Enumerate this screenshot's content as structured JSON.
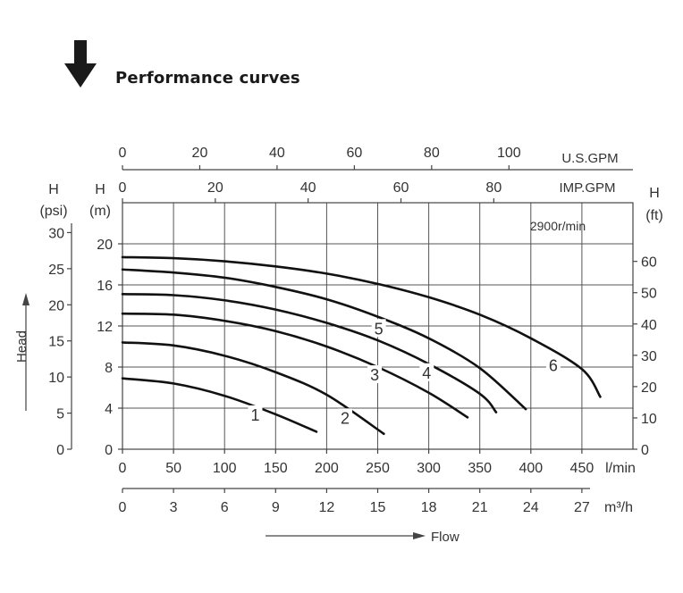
{
  "header": {
    "title": "Performance curves",
    "icon": "down-arrow-icon"
  },
  "chart_data": {
    "type": "line",
    "annotation": "2900r/min",
    "xlabel": "Flow",
    "ylabel": "Head",
    "axes": {
      "flow_lpm": {
        "label": "l/min",
        "ticks": [
          0,
          50,
          100,
          150,
          200,
          250,
          300,
          350,
          400,
          450
        ],
        "range": [
          0,
          500
        ]
      },
      "flow_m3h": {
        "label": "m³/h",
        "ticks": [
          0,
          3,
          6,
          9,
          12,
          15,
          18,
          21,
          24,
          27
        ]
      },
      "flow_usgpm": {
        "label": "U.S.GPM",
        "ticks": [
          0,
          20,
          40,
          60,
          80,
          100
        ]
      },
      "flow_impgpm": {
        "label": "IMP.GPM",
        "ticks": [
          0,
          20,
          40,
          60,
          80
        ]
      },
      "head_m": {
        "label_top": "H",
        "label_unit": "(m)",
        "ticks": [
          0,
          4,
          8,
          12,
          16,
          20
        ],
        "range": [
          0,
          24
        ]
      },
      "head_psi": {
        "label_top": "H",
        "label_unit": "(psi)",
        "ticks": [
          0,
          5,
          10,
          15,
          20,
          25,
          30
        ]
      },
      "head_ft": {
        "label_top": "H",
        "label_unit": "(ft)",
        "ticks": [
          0,
          10,
          20,
          30,
          40,
          50,
          60
        ]
      }
    },
    "grid": true,
    "series": [
      {
        "name": "1",
        "x": [
          0,
          50,
          100,
          150,
          190
        ],
        "y": [
          6.9,
          6.4,
          5.2,
          3.4,
          1.7
        ]
      },
      {
        "name": "2",
        "x": [
          0,
          50,
          100,
          150,
          200,
          256
        ],
        "y": [
          10.4,
          10.1,
          9.1,
          7.5,
          5.3,
          1.5
        ]
      },
      {
        "name": "3",
        "x": [
          0,
          50,
          100,
          150,
          200,
          250,
          300,
          338
        ],
        "y": [
          13.2,
          13.1,
          12.5,
          11.5,
          10.0,
          8.0,
          5.5,
          3.1
        ]
      },
      {
        "name": "4",
        "x": [
          0,
          50,
          100,
          150,
          200,
          250,
          300,
          350,
          366
        ],
        "y": [
          15.1,
          15.0,
          14.5,
          13.6,
          12.3,
          10.6,
          8.3,
          5.4,
          3.6
        ]
      },
      {
        "name": "5",
        "x": [
          0,
          50,
          100,
          150,
          200,
          250,
          300,
          350,
          395
        ],
        "y": [
          17.5,
          17.2,
          16.7,
          15.8,
          14.6,
          12.9,
          10.8,
          7.9,
          3.9
        ]
      },
      {
        "name": "6",
        "x": [
          0,
          50,
          100,
          150,
          200,
          250,
          300,
          350,
          400,
          450,
          468
        ],
        "y": [
          18.7,
          18.6,
          18.3,
          17.8,
          17.1,
          16.1,
          14.8,
          13.1,
          10.8,
          7.8,
          5.1
        ]
      }
    ],
    "curve_labels": [
      {
        "name": "1",
        "x": 130,
        "y": 3.4
      },
      {
        "name": "2",
        "x": 218,
        "y": 3.1
      },
      {
        "name": "3",
        "x": 247,
        "y": 7.3
      },
      {
        "name": "4",
        "x": 298,
        "y": 7.5
      },
      {
        "name": "5",
        "x": 251,
        "y": 11.8
      },
      {
        "name": "6",
        "x": 422,
        "y": 8.2
      }
    ]
  }
}
